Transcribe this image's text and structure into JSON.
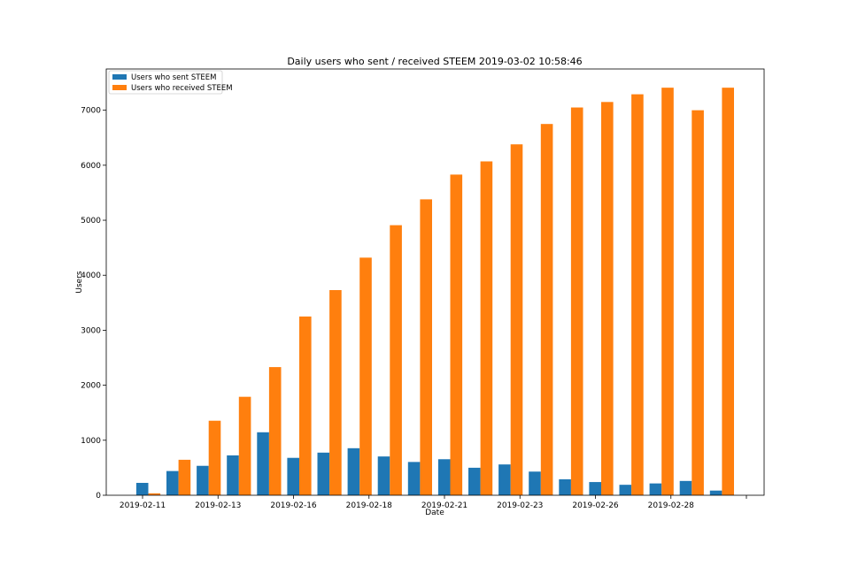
{
  "chart_data": {
    "type": "bar",
    "title": "Daily users who sent / received STEEM 2019-03-02 10:58:46",
    "xlabel": "Date",
    "ylabel": "Users",
    "ylim": [
      0,
      7750
    ],
    "yticks": [
      0,
      1000,
      2000,
      3000,
      4000,
      5000,
      6000,
      7000
    ],
    "xtick_labels": [
      "2019-02-11",
      "2019-02-13",
      "2019-02-16",
      "2019-02-18",
      "2019-02-21",
      "2019-02-23",
      "2019-02-26",
      "2019-02-28"
    ],
    "legend_position": "upper left",
    "grid": false,
    "series": [
      {
        "name": "Users who sent STEEM",
        "color": "#1f77b4",
        "values": [
          225,
          440,
          535,
          725,
          1145,
          680,
          775,
          855,
          705,
          605,
          655,
          500,
          560,
          430,
          290,
          240,
          190,
          215,
          260,
          85
        ]
      },
      {
        "name": "Users who received STEEM",
        "color": "#ff7f0e",
        "values": [
          35,
          645,
          1355,
          1790,
          2330,
          3250,
          3730,
          4320,
          4910,
          5380,
          5830,
          6070,
          6380,
          6750,
          7050,
          7150,
          7290,
          7410,
          7000,
          7410
        ]
      }
    ]
  }
}
